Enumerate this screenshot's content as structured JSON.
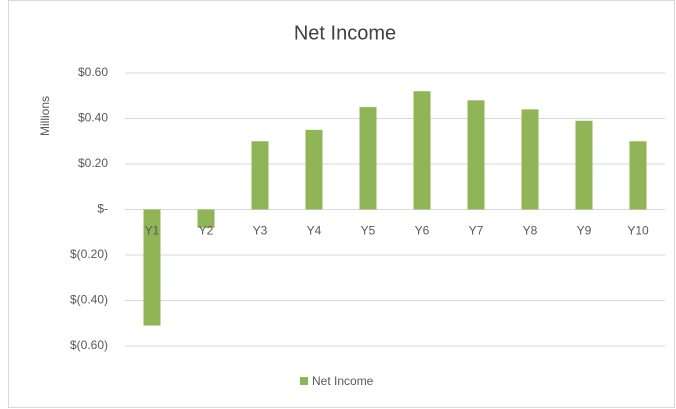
{
  "chart_data": {
    "type": "bar",
    "title": "Net Income",
    "y_label": "Millions",
    "categories": [
      "Y1",
      "Y2",
      "Y3",
      "Y4",
      "Y5",
      "Y6",
      "Y7",
      "Y8",
      "Y9",
      "Y10"
    ],
    "series": [
      {
        "name": "Net Income",
        "color": "#8fb556",
        "values": [
          -0.51,
          -0.08,
          0.3,
          0.35,
          0.45,
          0.52,
          0.48,
          0.44,
          0.39,
          0.3
        ]
      }
    ],
    "ylim": [
      -0.6,
      0.6
    ],
    "yticks": [
      {
        "value": -0.6,
        "label": "$(0.60)"
      },
      {
        "value": -0.4,
        "label": "$(0.40)"
      },
      {
        "value": -0.2,
        "label": "$(0.20)"
      },
      {
        "value": 0,
        "label": "$-"
      },
      {
        "value": 0.2,
        "label": "$0.20"
      },
      {
        "value": 0.4,
        "label": "$0.40"
      },
      {
        "value": 0.6,
        "label": "$0.60"
      }
    ],
    "grid": true,
    "legend": "bottom"
  }
}
